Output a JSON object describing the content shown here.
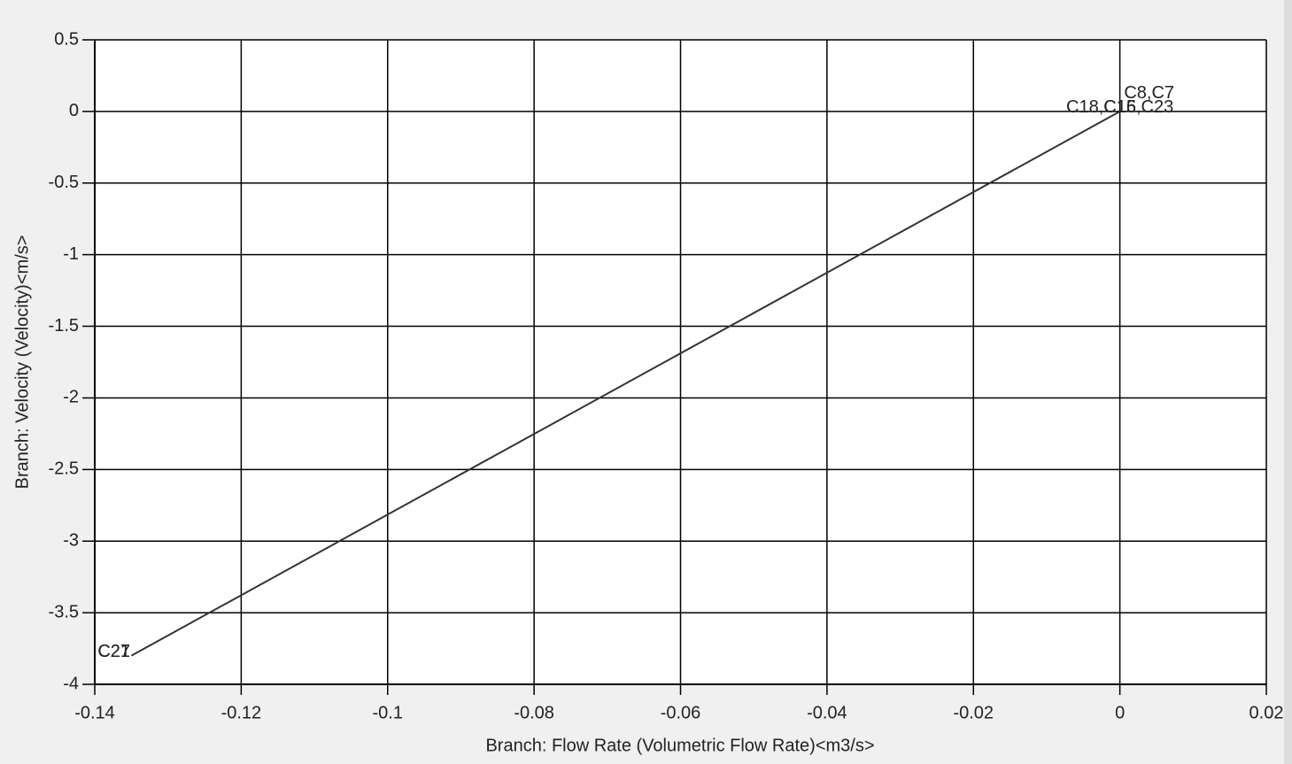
{
  "chart_data": {
    "type": "line",
    "x_label": "Branch: Flow Rate (Volumetric Flow Rate)<m3/s>",
    "y_label": "Branch: Velocity (Velocity)<m/s>",
    "x": [
      -0.135,
      0
    ],
    "series": [
      {
        "color": "#333333",
        "values": [
          -3.8,
          0
        ]
      }
    ],
    "annotations": [
      {
        "text": "C8,C7",
        "x": 0.004,
        "y": 0.1
      },
      {
        "text": "C18,C15,C23",
        "x": 0,
        "y": 0
      },
      {
        "text": "C16",
        "x": 0,
        "y": 0
      },
      {
        "text": "C21",
        "x": -0.135,
        "y": -3.8
      },
      {
        "text": "C27",
        "x": -0.135,
        "y": -3.8
      }
    ],
    "xlim": [
      -0.14,
      0.02
    ],
    "xticks": [
      -0.14,
      -0.12,
      -0.1,
      -0.08,
      -0.06,
      -0.04,
      -0.02,
      0,
      0.02
    ],
    "ylim": [
      -4,
      0.5
    ],
    "yticks": [
      0.5,
      0,
      -0.5,
      -1,
      -1.5,
      -2,
      -2.5,
      -3,
      -3.5,
      -4
    ],
    "grid": true
  }
}
